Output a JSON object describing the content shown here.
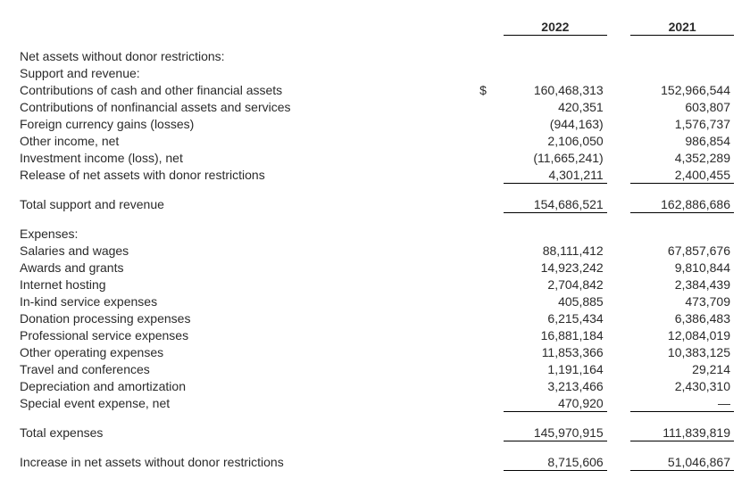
{
  "colors": {
    "text": "#2a2a2a",
    "background": "#ffffff",
    "rule": "#000000"
  },
  "typography": {
    "family": "Arial",
    "size_pt": 10.5
  },
  "columns": {
    "year1": "2022",
    "year2": "2021",
    "currency_symbol": "$"
  },
  "sections": {
    "heading": "Net assets without donor restrictions:",
    "support_revenue": {
      "label": "Support and revenue:",
      "items": [
        {
          "label": "Contributions of cash and other financial assets",
          "v1": "160,468,313",
          "v2": "152,966,544",
          "show_sym": true
        },
        {
          "label": "Contributions of nonfinancial assets and services",
          "v1": "420,351",
          "v2": "603,807"
        },
        {
          "label": "Foreign currency gains (losses)",
          "v1": "(944,163)",
          "v2": "1,576,737"
        },
        {
          "label": "Other income, net",
          "v1": "2,106,050",
          "v2": "986,854"
        },
        {
          "label": "Investment income (loss), net",
          "v1": "(11,665,241)",
          "v2": "4,352,289"
        },
        {
          "label": "Release of net assets with donor restrictions",
          "v1": "4,301,211",
          "v2": "2,400,455"
        }
      ],
      "total": {
        "label": "Total support and revenue",
        "v1": "154,686,521",
        "v2": "162,886,686"
      }
    },
    "expenses": {
      "label": "Expenses:",
      "items": [
        {
          "label": "Salaries and wages",
          "v1": "88,111,412",
          "v2": "67,857,676"
        },
        {
          "label": "Awards and grants",
          "v1": "14,923,242",
          "v2": "9,810,844"
        },
        {
          "label": "Internet hosting",
          "v1": "2,704,842",
          "v2": "2,384,439"
        },
        {
          "label": "In-kind service expenses",
          "v1": "405,885",
          "v2": "473,709"
        },
        {
          "label": "Donation processing expenses",
          "v1": "6,215,434",
          "v2": "6,386,483"
        },
        {
          "label": "Professional service expenses",
          "v1": "16,881,184",
          "v2": "12,084,019"
        },
        {
          "label": "Other operating expenses",
          "v1": "11,853,366",
          "v2": "10,383,125"
        },
        {
          "label": "Travel and conferences",
          "v1": "1,191,164",
          "v2": "29,214"
        },
        {
          "label": "Depreciation and amortization",
          "v1": "3,213,466",
          "v2": "2,430,310"
        },
        {
          "label": "Special event expense, net",
          "v1": "470,920",
          "v2": "—"
        }
      ],
      "total": {
        "label": "Total expenses",
        "v1": "145,970,915",
        "v2": "111,839,819"
      }
    },
    "increase": {
      "label": "Increase in net assets without donor restrictions",
      "v1": "8,715,606",
      "v2": "51,046,867"
    }
  }
}
